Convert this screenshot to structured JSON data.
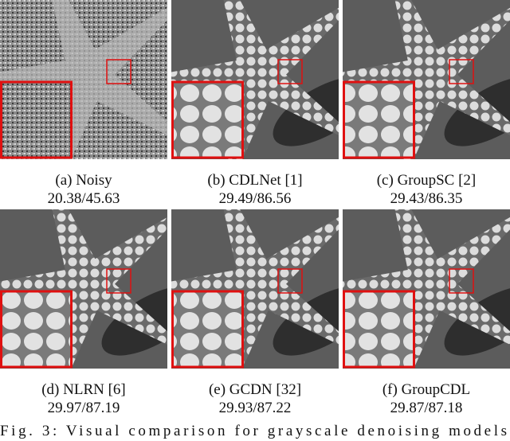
{
  "panels": [
    {
      "label": "(a) Noisy",
      "metrics": "20.38/45.63"
    },
    {
      "label": "(b) CDLNet [1]",
      "metrics": "29.49/86.56"
    },
    {
      "label": "(c) GroupSC [2]",
      "metrics": "29.43/86.35"
    },
    {
      "label": "(d) NLRN [6]",
      "metrics": "29.97/87.19"
    },
    {
      "label": "(e) GCDN [32]",
      "metrics": "29.93/87.22"
    },
    {
      "label": "(f) GroupCDL",
      "metrics": "29.87/87.18"
    }
  ],
  "caption": "Fig. 3: Visual comparison for grayscale denoising models"
}
